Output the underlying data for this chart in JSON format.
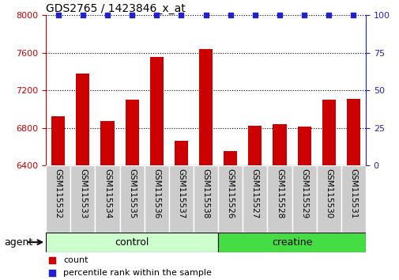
{
  "title": "GDS2765 / 1423846_x_at",
  "categories": [
    "GSM115532",
    "GSM115533",
    "GSM115534",
    "GSM115535",
    "GSM115536",
    "GSM115537",
    "GSM115538",
    "GSM115526",
    "GSM115527",
    "GSM115528",
    "GSM115529",
    "GSM115530",
    "GSM115531"
  ],
  "counts": [
    6920,
    7380,
    6870,
    7100,
    7560,
    6660,
    7640,
    6550,
    6820,
    6840,
    6810,
    7100,
    7110
  ],
  "percentile_ranks": [
    100,
    100,
    100,
    100,
    100,
    100,
    100,
    100,
    100,
    100,
    100,
    100,
    100
  ],
  "bar_color": "#cc0000",
  "dot_color": "#2222cc",
  "ylim_left": [
    6400,
    8000
  ],
  "ylim_right": [
    0,
    100
  ],
  "yticks_left": [
    6400,
    6800,
    7200,
    7600,
    8000
  ],
  "yticks_right": [
    0,
    25,
    50,
    75,
    100
  ],
  "ylabel_left_color": "#cc0000",
  "ylabel_right_color": "#2222cc",
  "grid_color": "#000000",
  "n_control": 7,
  "n_creatine": 6,
  "control_color_light": "#ccffcc",
  "creatine_color": "#44dd44",
  "agent_label": "agent",
  "control_label": "control",
  "creatine_label": "creatine",
  "legend_count_label": "count",
  "legend_percentile_label": "percentile rank within the sample",
  "bg_color": "#ffffff",
  "tick_label_area_color": "#cccccc",
  "bar_width": 0.55
}
